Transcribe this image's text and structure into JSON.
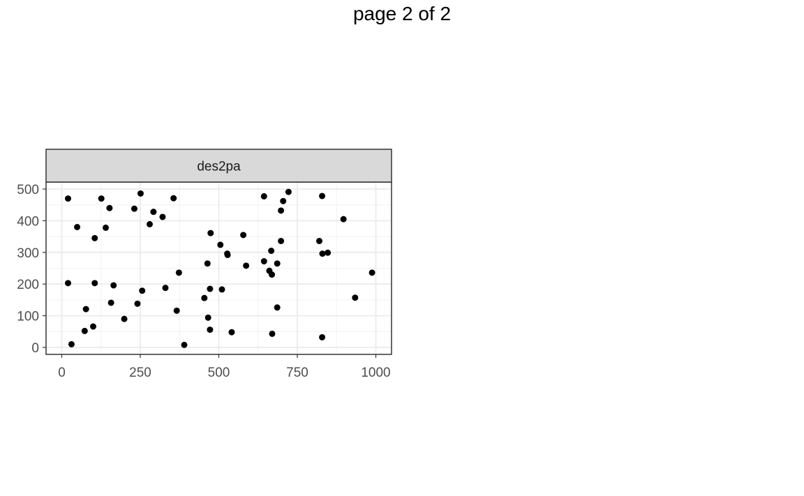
{
  "page": {
    "title": "page 2 of 2"
  },
  "chart_data": {
    "type": "scatter",
    "title": "",
    "xlabel": "",
    "ylabel": "",
    "facet_label": "des2pa",
    "xlim": [
      -50,
      1050
    ],
    "ylim": [
      -22,
      522
    ],
    "x_ticks": [
      0,
      250,
      500,
      750,
      1000
    ],
    "x_tick_labels": [
      "0",
      "250",
      "500",
      "750",
      "1000"
    ],
    "y_ticks": [
      0,
      100,
      200,
      300,
      400,
      500
    ],
    "y_tick_labels": [
      "0",
      "100",
      "200",
      "300",
      "400",
      "500"
    ],
    "grid": true,
    "point_color": "#000000",
    "points": [
      {
        "x": 20,
        "y": 470
      },
      {
        "x": 49,
        "y": 380
      },
      {
        "x": 105,
        "y": 345
      },
      {
        "x": 126,
        "y": 470
      },
      {
        "x": 152,
        "y": 440
      },
      {
        "x": 140,
        "y": 378
      },
      {
        "x": 231,
        "y": 438
      },
      {
        "x": 251,
        "y": 486
      },
      {
        "x": 292,
        "y": 428
      },
      {
        "x": 280,
        "y": 389
      },
      {
        "x": 321,
        "y": 412
      },
      {
        "x": 356,
        "y": 471
      },
      {
        "x": 20,
        "y": 203
      },
      {
        "x": 105,
        "y": 203
      },
      {
        "x": 165,
        "y": 196
      },
      {
        "x": 157,
        "y": 141
      },
      {
        "x": 241,
        "y": 138
      },
      {
        "x": 256,
        "y": 179
      },
      {
        "x": 330,
        "y": 188
      },
      {
        "x": 373,
        "y": 236
      },
      {
        "x": 366,
        "y": 116
      },
      {
        "x": 77,
        "y": 121
      },
      {
        "x": 199,
        "y": 90
      },
      {
        "x": 100,
        "y": 66
      },
      {
        "x": 73,
        "y": 52
      },
      {
        "x": 31,
        "y": 10
      },
      {
        "x": 390,
        "y": 8
      },
      {
        "x": 474,
        "y": 361
      },
      {
        "x": 505,
        "y": 324
      },
      {
        "x": 528,
        "y": 292
      },
      {
        "x": 527,
        "y": 296
      },
      {
        "x": 464,
        "y": 265
      },
      {
        "x": 578,
        "y": 355
      },
      {
        "x": 587,
        "y": 258
      },
      {
        "x": 454,
        "y": 156
      },
      {
        "x": 472,
        "y": 185
      },
      {
        "x": 510,
        "y": 183
      },
      {
        "x": 466,
        "y": 94
      },
      {
        "x": 472,
        "y": 56
      },
      {
        "x": 541,
        "y": 48
      },
      {
        "x": 644,
        "y": 477
      },
      {
        "x": 722,
        "y": 491
      },
      {
        "x": 705,
        "y": 462
      },
      {
        "x": 698,
        "y": 432
      },
      {
        "x": 698,
        "y": 336
      },
      {
        "x": 667,
        "y": 305
      },
      {
        "x": 644,
        "y": 272
      },
      {
        "x": 661,
        "y": 242
      },
      {
        "x": 669,
        "y": 230
      },
      {
        "x": 686,
        "y": 265
      },
      {
        "x": 686,
        "y": 126
      },
      {
        "x": 670,
        "y": 43
      },
      {
        "x": 829,
        "y": 478
      },
      {
        "x": 897,
        "y": 405
      },
      {
        "x": 820,
        "y": 336
      },
      {
        "x": 830,
        "y": 296
      },
      {
        "x": 847,
        "y": 299
      },
      {
        "x": 988,
        "y": 236
      },
      {
        "x": 934,
        "y": 157
      },
      {
        "x": 829,
        "y": 32
      }
    ]
  }
}
